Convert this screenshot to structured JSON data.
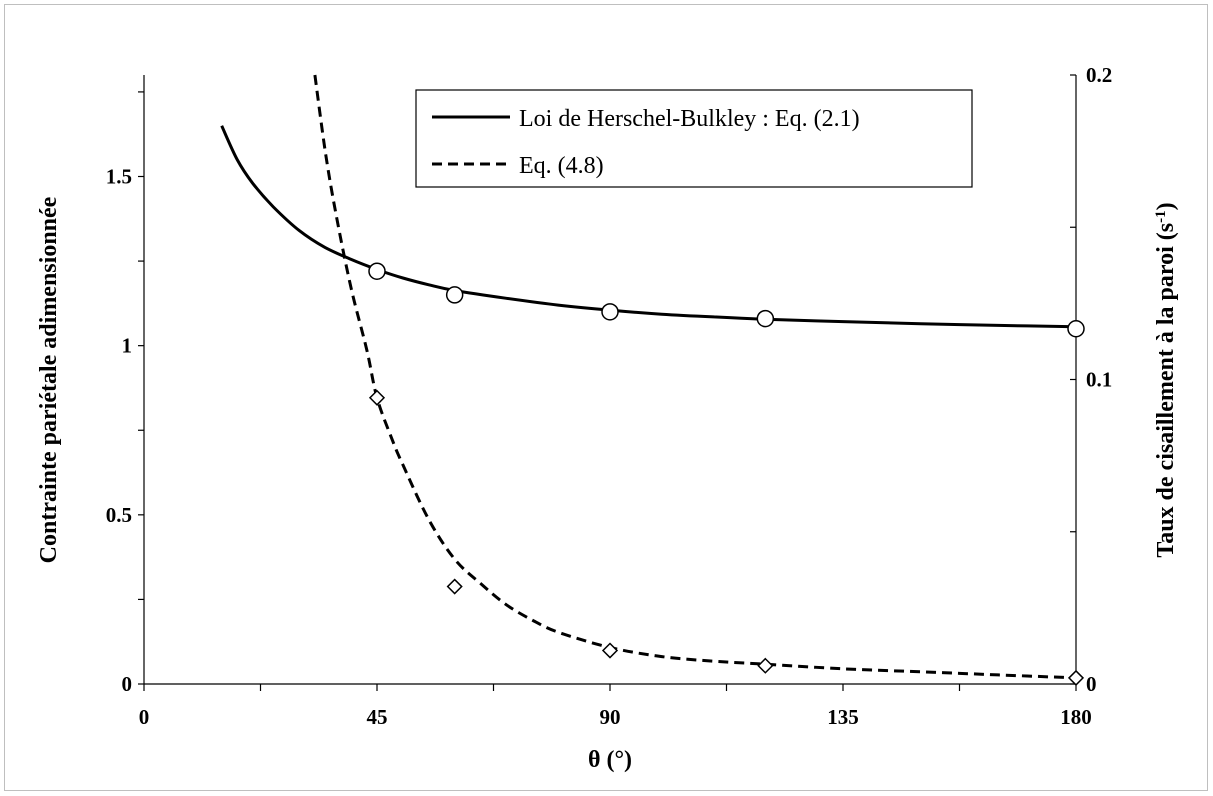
{
  "chart_data": {
    "type": "line",
    "xlabel": "θ (°)",
    "ylabel_left": "Contrainte pariétale adimensionnée",
    "ylabel_right_main": "Taux de cisaillement à la paroi (s",
    "ylabel_right_sup": "-1",
    "ylabel_right_close": ")",
    "xlim": [
      0,
      180
    ],
    "ylim_left": [
      0,
      1.8
    ],
    "ylim_right": [
      0,
      0.2
    ],
    "x_ticks": [
      "0",
      "45",
      "90",
      "135",
      "180"
    ],
    "y_left_ticks": [
      "0",
      "0.5",
      "1",
      "1.5"
    ],
    "y_right_ticks": [
      "0",
      "0.1",
      "0.2"
    ],
    "legend_position": "top-center",
    "series": [
      {
        "name": "Loi de Herschel-Bulkley : Eq. (2.1)",
        "axis": "left",
        "style": "solid",
        "x": [
          15,
          18,
          21,
          25,
          30,
          35,
          40,
          45,
          50,
          55,
          60,
          70,
          80,
          90,
          100,
          110,
          120,
          135,
          150,
          165,
          180
        ],
        "y": [
          1.65,
          1.55,
          1.48,
          1.41,
          1.34,
          1.29,
          1.255,
          1.225,
          1.2,
          1.18,
          1.163,
          1.14,
          1.12,
          1.105,
          1.093,
          1.085,
          1.078,
          1.071,
          1.065,
          1.06,
          1.056
        ]
      },
      {
        "name": "Eq. (4.8)",
        "axis": "right",
        "style": "dashed",
        "x": [
          33,
          35,
          37,
          40,
          43,
          45,
          48,
          50,
          55,
          60,
          65,
          70,
          75,
          80,
          90,
          100,
          110,
          120,
          135,
          150,
          165,
          180
        ],
        "y": [
          0.2,
          0.175,
          0.155,
          0.13,
          0.11,
          0.094,
          0.08,
          0.072,
          0.054,
          0.041,
          0.033,
          0.026,
          0.021,
          0.017,
          0.012,
          0.009,
          0.0075,
          0.0065,
          0.005,
          0.004,
          0.003,
          0.002
        ]
      },
      {
        "name": "",
        "axis": "left",
        "style": "circle-markers",
        "x": [
          45,
          60,
          90,
          120,
          180
        ],
        "y": [
          1.22,
          1.15,
          1.1,
          1.08,
          1.05
        ]
      },
      {
        "name": "",
        "axis": "right",
        "style": "diamond-markers",
        "x": [
          45,
          60,
          90,
          120,
          180
        ],
        "y": [
          0.094,
          0.032,
          0.011,
          0.006,
          0.002
        ]
      }
    ]
  }
}
